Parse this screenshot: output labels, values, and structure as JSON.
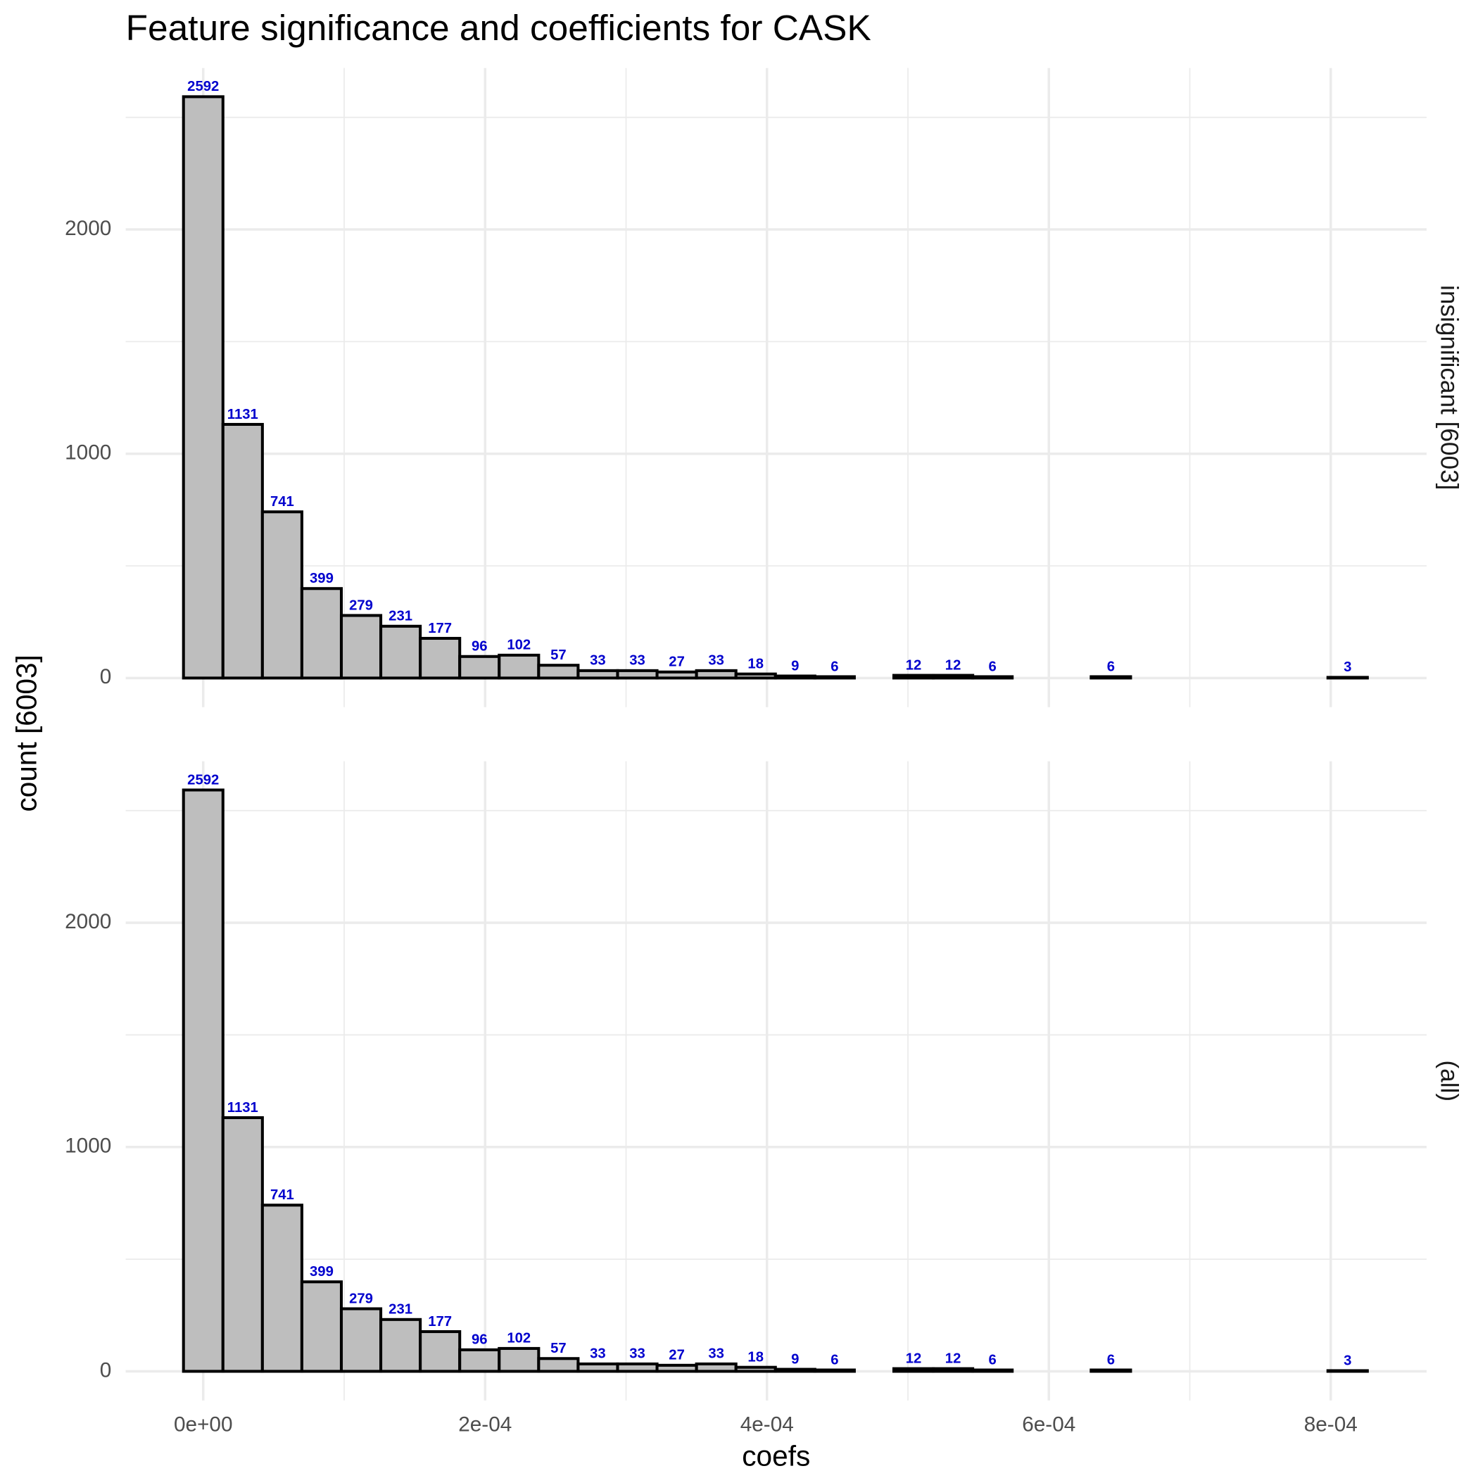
{
  "chart_data": [
    {
      "type": "histogram",
      "title": "Feature significance and coefficients for CASK",
      "y_label": "count [6003]",
      "strip": "insignificant [6003]",
      "bins": [
        -1.4e-05,
        1.4e-05,
        4.2e-05,
        7e-05,
        9.8e-05,
        0.000126,
        0.000154,
        0.000182,
        0.00021,
        0.000238,
        0.000266,
        0.000294,
        0.000322,
        0.00035,
        0.000378,
        0.000406,
        0.000434,
        0.000462,
        0.00049,
        0.000518,
        0.000546,
        0.000574,
        0.000602,
        0.00063,
        0.000658,
        0.000686,
        0.000714,
        0.000742,
        0.00077,
        0.000798,
        0.000826
      ],
      "values": [
        2592,
        1131,
        741,
        399,
        279,
        231,
        177,
        96,
        102,
        57,
        33,
        33,
        27,
        33,
        18,
        9,
        6,
        0,
        12,
        12,
        6,
        0,
        0,
        6,
        0,
        0,
        0,
        0,
        0,
        3
      ],
      "color": "#bebebe",
      "label_color": "#0000cd",
      "xlim": [
        -5.5e-05,
        0.000868
      ],
      "xticks": [
        {
          "value": 0,
          "label": "0e+00"
        },
        {
          "value": 0.0002,
          "label": "2e-04"
        },
        {
          "value": 0.0004,
          "label": "4e-04"
        },
        {
          "value": 0.0006,
          "label": "6e-04"
        },
        {
          "value": 0.0008,
          "label": "8e-04"
        }
      ],
      "xminor": [
        0.0001,
        0.0003,
        0.0005,
        0.0007
      ],
      "ylim": [
        -130,
        2720
      ],
      "yticks": [
        0,
        1000,
        2000
      ],
      "yminor": [
        500,
        1500,
        2500
      ],
      "grid": true
    },
    {
      "type": "histogram",
      "x_label": "coefs",
      "strip": "(all)",
      "bins": [
        -1.4e-05,
        1.4e-05,
        4.2e-05,
        7e-05,
        9.8e-05,
        0.000126,
        0.000154,
        0.000182,
        0.00021,
        0.000238,
        0.000266,
        0.000294,
        0.000322,
        0.00035,
        0.000378,
        0.000406,
        0.000434,
        0.000462,
        0.00049,
        0.000518,
        0.000546,
        0.000574,
        0.000602,
        0.00063,
        0.000658,
        0.000686,
        0.000714,
        0.000742,
        0.00077,
        0.000798,
        0.000826
      ],
      "values": [
        2592,
        1131,
        741,
        399,
        279,
        231,
        177,
        96,
        102,
        57,
        33,
        33,
        27,
        33,
        18,
        9,
        6,
        0,
        12,
        12,
        6,
        0,
        0,
        6,
        0,
        0,
        0,
        0,
        0,
        3
      ],
      "color": "#bebebe",
      "label_color": "#0000cd",
      "xlim": [
        -5.5e-05,
        0.000868
      ],
      "xticks": [
        {
          "value": 0,
          "label": "0e+00"
        },
        {
          "value": 0.0002,
          "label": "2e-04"
        },
        {
          "value": 0.0004,
          "label": "4e-04"
        },
        {
          "value": 0.0006,
          "label": "6e-04"
        },
        {
          "value": 0.0008,
          "label": "8e-04"
        }
      ],
      "xminor": [
        0.0001,
        0.0003,
        0.0005,
        0.0007
      ],
      "ylim": [
        -130,
        2720
      ],
      "yticks": [
        0,
        1000,
        2000
      ],
      "yminor": [
        500,
        1500,
        2500
      ],
      "grid": true
    }
  ]
}
